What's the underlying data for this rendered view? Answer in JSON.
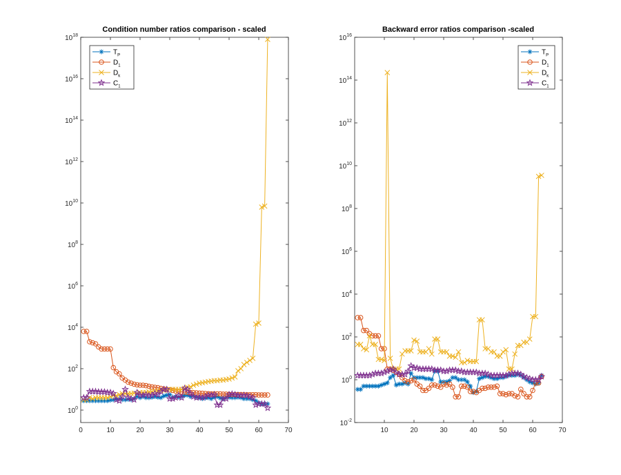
{
  "chart_data": [
    {
      "type": "line",
      "title": "Condition number ratios comparison - scaled",
      "xlabel": "",
      "ylabel": "",
      "yscale": "log",
      "xlim": [
        0,
        70
      ],
      "ylim_exp": [
        -0.6,
        18
      ],
      "x_ticks": [
        "0",
        "10",
        "20",
        "30",
        "40",
        "50",
        "60",
        "70"
      ],
      "y_ticks": [
        {
          "base": "10",
          "exp": "0"
        },
        {
          "base": "10",
          "exp": "2"
        },
        {
          "base": "10",
          "exp": "4"
        },
        {
          "base": "10",
          "exp": "6"
        },
        {
          "base": "10",
          "exp": "8"
        },
        {
          "base": "10",
          "exp": "10"
        },
        {
          "base": "10",
          "exp": "12"
        },
        {
          "base": "10",
          "exp": "14"
        },
        {
          "base": "10",
          "exp": "16"
        },
        {
          "base": "10",
          "exp": "18"
        }
      ],
      "legend_position": "top-left",
      "x": [
        1,
        2,
        3,
        4,
        5,
        6,
        7,
        8,
        9,
        10,
        11,
        12,
        13,
        14,
        15,
        16,
        17,
        18,
        19,
        20,
        21,
        22,
        23,
        24,
        25,
        26,
        27,
        28,
        29,
        30,
        31,
        32,
        33,
        34,
        35,
        36,
        37,
        38,
        39,
        40,
        41,
        42,
        43,
        44,
        45,
        46,
        47,
        48,
        49,
        50,
        51,
        52,
        53,
        54,
        55,
        56,
        57,
        58,
        59,
        60,
        61,
        62,
        63
      ],
      "series": [
        {
          "name": "T",
          "sub": "P",
          "marker": "asterisk",
          "color": "#0072BD",
          "log10_values": [
            0.45,
            0.45,
            0.45,
            0.45,
            0.45,
            0.45,
            0.45,
            0.45,
            0.45,
            0.48,
            0.5,
            0.52,
            0.55,
            0.5,
            0.5,
            0.52,
            0.5,
            0.55,
            0.65,
            0.6,
            0.65,
            0.6,
            0.6,
            0.62,
            0.65,
            0.62,
            0.6,
            0.68,
            0.72,
            0.75,
            0.62,
            0.65,
            0.62,
            0.65,
            0.7,
            0.72,
            0.65,
            0.7,
            0.62,
            0.6,
            0.55,
            0.58,
            0.6,
            0.55,
            0.62,
            0.65,
            0.58,
            0.55,
            0.6,
            0.62,
            0.6,
            0.6,
            0.62,
            0.6,
            0.55,
            0.55,
            0.55,
            0.5,
            0.45,
            0.35,
            0.3,
            0.3,
            0.3
          ]
        },
        {
          "name": "D",
          "sub": "1",
          "marker": "circle",
          "color": "#D95319",
          "log10_values": [
            3.8,
            3.8,
            3.3,
            3.25,
            3.2,
            3.05,
            2.95,
            2.95,
            2.95,
            2.95,
            2.05,
            1.85,
            1.75,
            1.55,
            1.45,
            1.35,
            1.3,
            1.25,
            1.22,
            1.2,
            1.2,
            1.18,
            1.15,
            1.12,
            1.1,
            1.08,
            1.05,
            1.02,
            1.0,
            0.98,
            0.95,
            0.92,
            0.9,
            0.88,
            0.87,
            0.86,
            0.85,
            0.84,
            0.83,
            0.82,
            0.81,
            0.8,
            0.79,
            0.78,
            0.78,
            0.78,
            0.78,
            0.77,
            0.77,
            0.76,
            0.75,
            0.75,
            0.75,
            0.75,
            0.74,
            0.74,
            0.74,
            0.74,
            0.74,
            0.73,
            0.73,
            0.73,
            0.73
          ]
        },
        {
          "name": "D",
          "sub": "k",
          "marker": "x",
          "color": "#EDB120",
          "log10_values": [
            0.5,
            0.5,
            0.6,
            0.55,
            0.6,
            0.6,
            0.6,
            0.6,
            0.6,
            0.65,
            0.7,
            0.7,
            0.75,
            0.8,
            0.8,
            0.8,
            0.8,
            0.82,
            0.8,
            0.85,
            0.85,
            0.85,
            0.88,
            0.9,
            0.9,
            0.92,
            0.95,
            0.95,
            0.98,
            1.0,
            1.0,
            1.0,
            1.0,
            1.0,
            1.05,
            1.1,
            1.12,
            1.2,
            1.25,
            1.3,
            1.32,
            1.35,
            1.38,
            1.4,
            1.42,
            1.42,
            1.45,
            1.45,
            1.48,
            1.5,
            1.55,
            1.6,
            1.9,
            2.0,
            2.2,
            2.3,
            2.4,
            2.5,
            4.15,
            4.2,
            9.8,
            9.85,
            17.9
          ]
        },
        {
          "name": "C",
          "sub": "1",
          "marker": "pentagram",
          "color": "#7E2F8E",
          "log10_values": [
            0.6,
            0.6,
            0.9,
            0.9,
            0.9,
            0.88,
            0.88,
            0.88,
            0.85,
            0.85,
            0.8,
            0.5,
            0.45,
            0.65,
            1.0,
            0.6,
            0.55,
            0.5,
            0.85,
            0.72,
            0.72,
            0.75,
            0.7,
            0.72,
            0.8,
            0.75,
            0.9,
            1.0,
            1.0,
            0.55,
            0.55,
            0.6,
            0.7,
            0.6,
            1.05,
            1.0,
            0.8,
            0.65,
            0.6,
            0.62,
            0.6,
            0.65,
            0.72,
            0.72,
            0.75,
            0.25,
            0.25,
            0.55,
            0.55,
            0.75,
            0.78,
            0.75,
            0.72,
            0.7,
            0.72,
            0.7,
            0.65,
            0.6,
            0.25,
            0.3,
            0.3,
            0.3,
            0.1
          ]
        }
      ]
    },
    {
      "type": "line",
      "title": "Backward error ratios comparison -scaled",
      "xlabel": "",
      "ylabel": "",
      "yscale": "log",
      "xlim": [
        0,
        70
      ],
      "ylim_exp": [
        -2,
        16
      ],
      "x_ticks": [
        "10",
        "20",
        "30",
        "40",
        "50",
        "60",
        "70"
      ],
      "y_ticks": [
        {
          "base": "10",
          "exp": "-2"
        },
        {
          "base": "10",
          "exp": "0"
        },
        {
          "base": "10",
          "exp": "2"
        },
        {
          "base": "10",
          "exp": "4"
        },
        {
          "base": "10",
          "exp": "6"
        },
        {
          "base": "10",
          "exp": "8"
        },
        {
          "base": "10",
          "exp": "10"
        },
        {
          "base": "10",
          "exp": "12"
        },
        {
          "base": "10",
          "exp": "14"
        },
        {
          "base": "10",
          "exp": "16"
        }
      ],
      "legend_position": "top-right",
      "x": [
        1,
        2,
        3,
        4,
        5,
        6,
        7,
        8,
        9,
        10,
        11,
        12,
        13,
        14,
        15,
        16,
        17,
        18,
        19,
        20,
        21,
        22,
        23,
        24,
        25,
        26,
        27,
        28,
        29,
        30,
        31,
        32,
        33,
        34,
        35,
        36,
        37,
        38,
        39,
        40,
        41,
        42,
        43,
        44,
        45,
        46,
        47,
        48,
        49,
        50,
        51,
        52,
        53,
        54,
        55,
        56,
        57,
        58,
        59,
        60,
        61,
        62,
        63
      ],
      "series": [
        {
          "name": "T",
          "sub": "P",
          "marker": "asterisk",
          "color": "#0072BD",
          "log10_values": [
            -0.45,
            -0.45,
            -0.3,
            -0.3,
            -0.3,
            -0.3,
            -0.3,
            -0.3,
            -0.25,
            -0.2,
            -0.15,
            0.1,
            0.2,
            -0.25,
            -0.2,
            -0.2,
            -0.15,
            -0.2,
            0.3,
            0.1,
            0.1,
            0.1,
            0.1,
            0.05,
            0.05,
            0.0,
            0.4,
            0.4,
            -0.1,
            -0.1,
            -0.1,
            -0.05,
            0.1,
            0.1,
            0.0,
            0.0,
            0.0,
            -0.1,
            -0.3,
            -0.6,
            -0.55,
            0.05,
            0.1,
            0.15,
            0.15,
            0.1,
            0.05,
            0.05,
            0.1,
            0.1,
            0.15,
            0.2,
            0.2,
            0.2,
            0.25,
            0.2,
            0.1,
            0.0,
            -0.1,
            -0.15,
            -0.2,
            -0.15,
            0.2
          ]
        },
        {
          "name": "D",
          "sub": "1",
          "marker": "circle",
          "color": "#D95319",
          "log10_values": [
            2.9,
            2.9,
            2.3,
            2.3,
            2.15,
            2.05,
            2.05,
            2.05,
            1.45,
            1.45,
            0.5,
            0.5,
            0.45,
            0.35,
            0.25,
            0.1,
            -0.05,
            -0.1,
            -0.05,
            0.0,
            -0.2,
            -0.3,
            -0.5,
            -0.5,
            -0.4,
            -0.25,
            -0.25,
            -0.3,
            -0.35,
            -0.2,
            -0.25,
            -0.2,
            -0.35,
            -0.8,
            -0.8,
            -0.3,
            -0.3,
            -0.35,
            -0.55,
            -0.55,
            -0.6,
            -0.5,
            -0.4,
            -0.4,
            -0.35,
            -0.35,
            -0.35,
            -0.3,
            -0.65,
            -0.65,
            -0.7,
            -0.65,
            -0.65,
            -0.75,
            -0.8,
            -0.45,
            -0.65,
            -0.8,
            -0.8,
            -0.5,
            -0.15,
            -0.15,
            0.15
          ]
        },
        {
          "name": "D",
          "sub": "k",
          "marker": "x",
          "color": "#EDB120",
          "log10_values": [
            1.65,
            1.65,
            1.45,
            1.4,
            2.05,
            1.65,
            1.65,
            0.95,
            0.95,
            0.9,
            14.35,
            1.0,
            0.5,
            0.5,
            0.5,
            1.2,
            1.35,
            1.35,
            1.35,
            1.85,
            1.8,
            1.3,
            1.3,
            1.3,
            1.45,
            1.2,
            1.9,
            1.9,
            1.3,
            1.3,
            1.3,
            1.1,
            1.1,
            1.05,
            1.3,
            0.8,
            0.8,
            0.9,
            0.85,
            0.85,
            0.85,
            2.8,
            2.8,
            1.45,
            1.45,
            1.3,
            1.3,
            1.1,
            1.1,
            1.3,
            1.4,
            0.5,
            0.5,
            1.2,
            1.6,
            1.6,
            1.75,
            1.75,
            1.9,
            2.95,
            2.95,
            9.5,
            9.55
          ]
        },
        {
          "name": "C",
          "sub": "1",
          "marker": "pentagram",
          "color": "#7E2F8E",
          "log10_values": [
            0.2,
            0.2,
            0.2,
            0.2,
            0.2,
            0.25,
            0.3,
            0.3,
            0.3,
            0.35,
            0.4,
            0.45,
            0.5,
            0.35,
            0.25,
            0.25,
            0.25,
            0.4,
            0.65,
            0.55,
            0.55,
            0.5,
            0.5,
            0.5,
            0.5,
            0.5,
            0.45,
            0.45,
            0.45,
            0.4,
            0.4,
            0.45,
            0.45,
            0.45,
            0.4,
            0.4,
            0.35,
            0.35,
            0.35,
            0.35,
            0.35,
            0.3,
            0.3,
            0.3,
            0.25,
            0.2,
            0.2,
            0.2,
            0.2,
            0.2,
            0.2,
            0.25,
            0.3,
            0.3,
            0.3,
            0.25,
            0.15,
            0.1,
            0.05,
            0.0,
            0.0,
            0.0,
            0.15
          ]
        }
      ]
    }
  ]
}
